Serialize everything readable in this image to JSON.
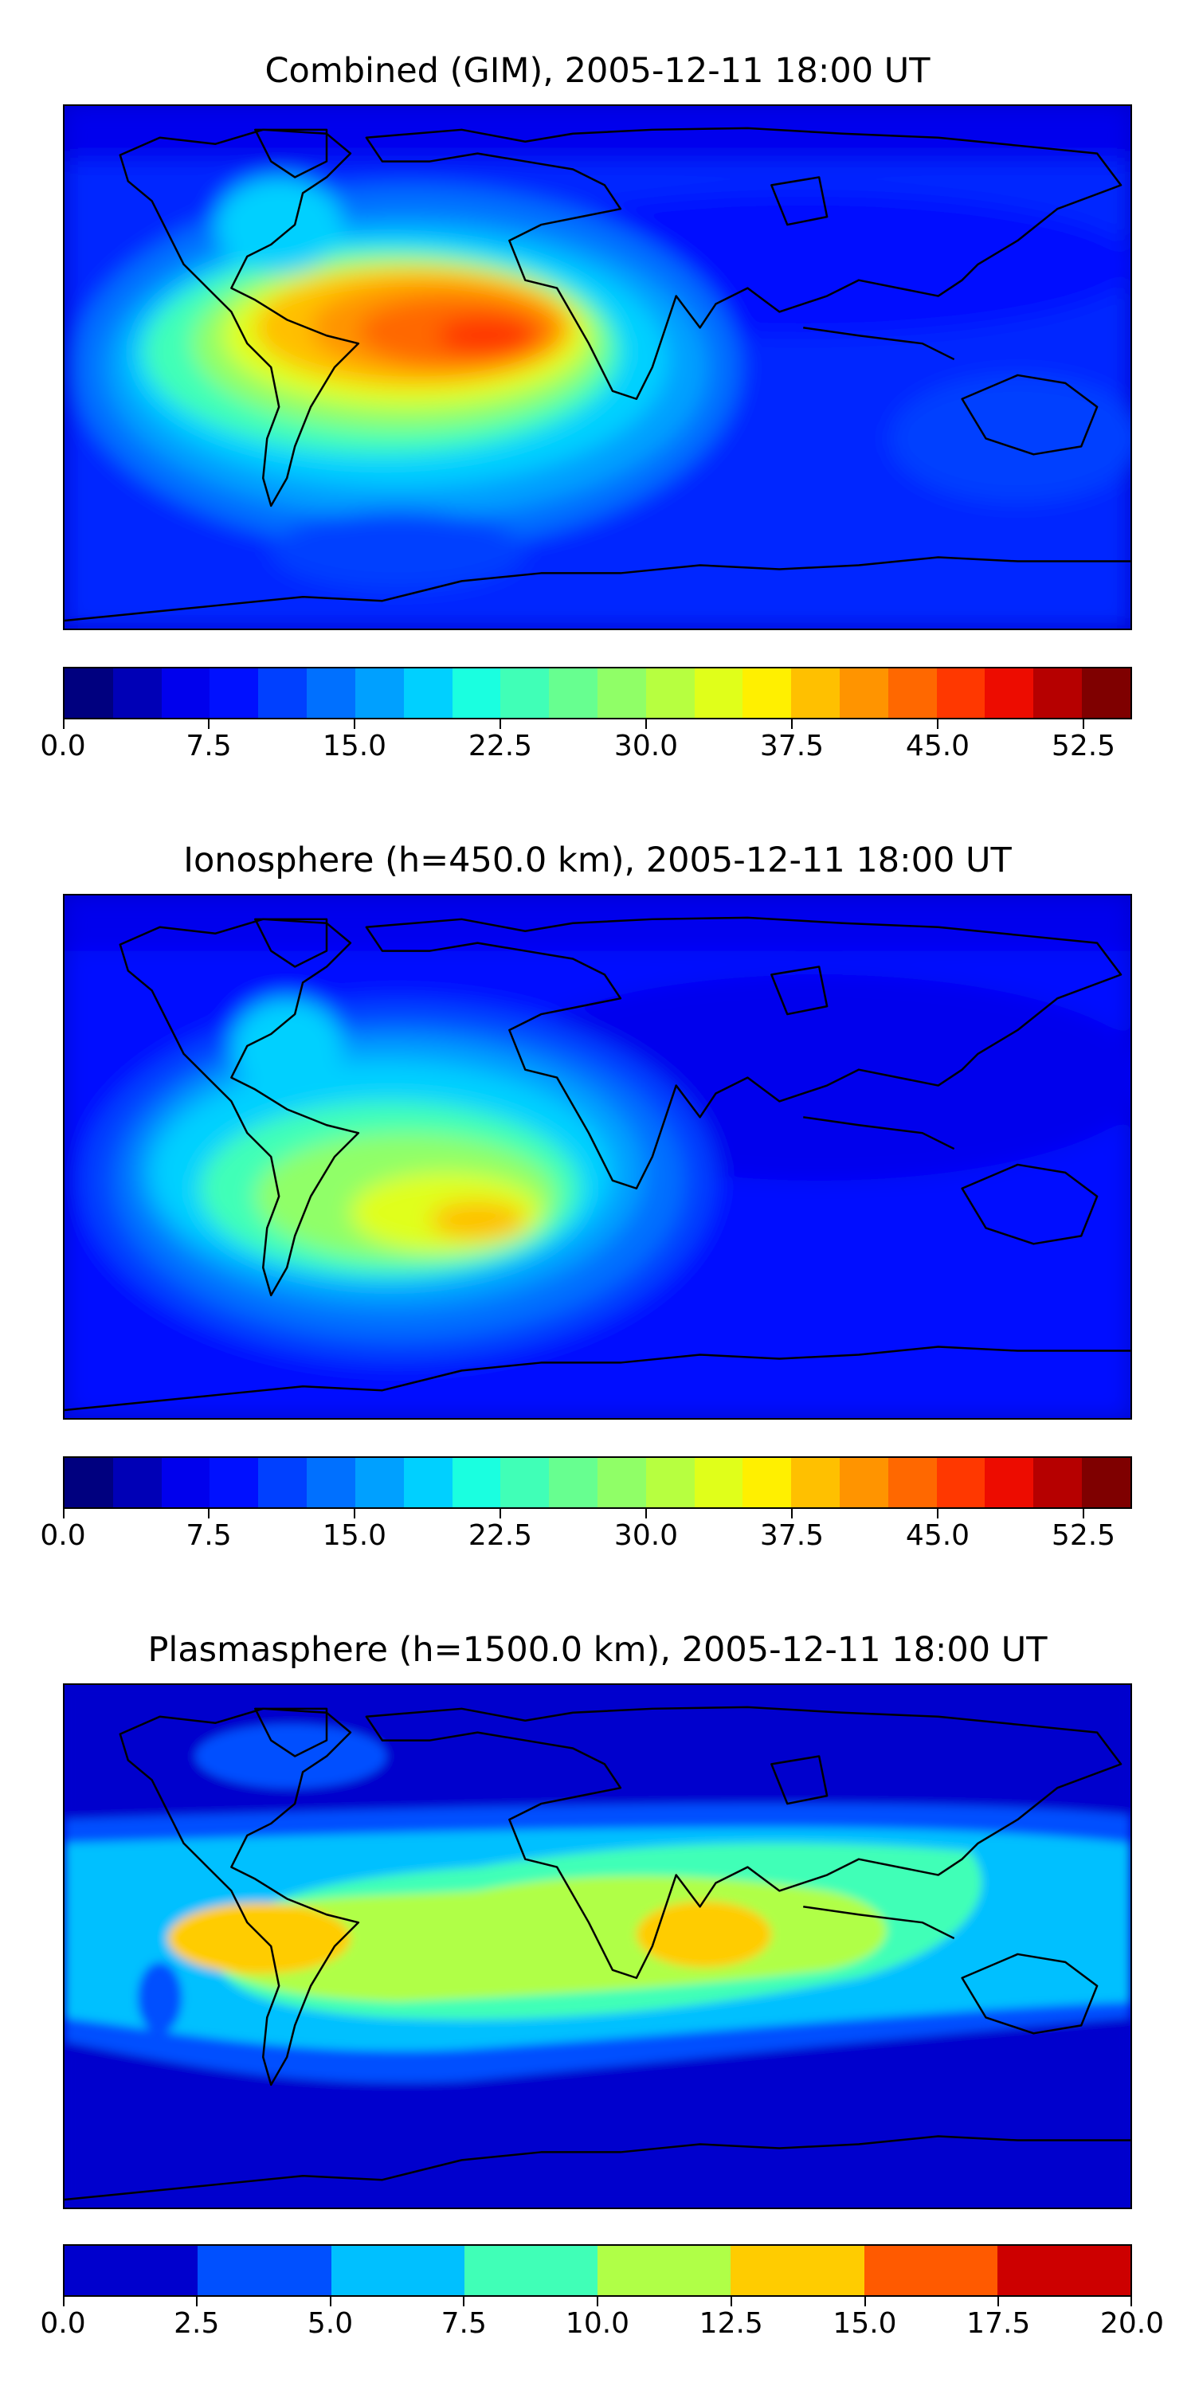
{
  "panels": [
    {
      "title": "Combined (GIM), 2005-12-11 18:00 UT",
      "map_name": "combined-gim-tec-map",
      "colorbar": {
        "vmin": 0.0,
        "vmax": 55.0,
        "colors": [
          "#00007f",
          "#0000b6",
          "#0000ed",
          "#0010ff",
          "#0040ff",
          "#0070ff",
          "#00a0ff",
          "#00d0ff",
          "#1affe0",
          "#40ffb7",
          "#67ff90",
          "#90ff67",
          "#b7ff40",
          "#e0ff1a",
          "#fff000",
          "#ffc000",
          "#ff9400",
          "#ff6800",
          "#ff3800",
          "#ed0c00",
          "#b60000",
          "#7f0000"
        ],
        "ticks": [
          "0.0",
          "7.5",
          "15.0",
          "22.5",
          "30.0",
          "37.5",
          "45.0",
          "52.5"
        ],
        "tick_values": [
          0.0,
          7.5,
          15.0,
          22.5,
          30.0,
          37.5,
          45.0,
          52.5
        ]
      }
    },
    {
      "title": "Ionosphere  (h=450.0 km), 2005-12-11 18:00 UT",
      "map_name": "ionosphere-tec-map",
      "colorbar": {
        "vmin": 0.0,
        "vmax": 55.0,
        "colors": [
          "#00007f",
          "#0000b6",
          "#0000ed",
          "#0010ff",
          "#0040ff",
          "#0070ff",
          "#00a0ff",
          "#00d0ff",
          "#1affe0",
          "#40ffb7",
          "#67ff90",
          "#90ff67",
          "#b7ff40",
          "#e0ff1a",
          "#fff000",
          "#ffc000",
          "#ff9400",
          "#ff6800",
          "#ff3800",
          "#ed0c00",
          "#b60000",
          "#7f0000"
        ],
        "ticks": [
          "0.0",
          "7.5",
          "15.0",
          "22.5",
          "30.0",
          "37.5",
          "45.0",
          "52.5"
        ],
        "tick_values": [
          0.0,
          7.5,
          15.0,
          22.5,
          30.0,
          37.5,
          45.0,
          52.5
        ]
      }
    },
    {
      "title": "Plasmasphere (h=1500.0 km), 2005-12-11 18:00 UT",
      "map_name": "plasmasphere-tec-map",
      "colorbar": {
        "vmin": 0.0,
        "vmax": 20.0,
        "colors": [
          "#0000cd",
          "#0050ff",
          "#00c0ff",
          "#40ffb7",
          "#b0ff47",
          "#ffcc00",
          "#ff5a00",
          "#cd0000"
        ],
        "ticks": [
          "0.0",
          "2.5",
          "5.0",
          "7.5",
          "10.0",
          "12.5",
          "15.0",
          "17.5",
          "20.0"
        ],
        "tick_values": [
          0.0,
          2.5,
          5.0,
          7.5,
          10.0,
          12.5,
          15.0,
          17.5,
          20.0
        ]
      }
    }
  ]
}
